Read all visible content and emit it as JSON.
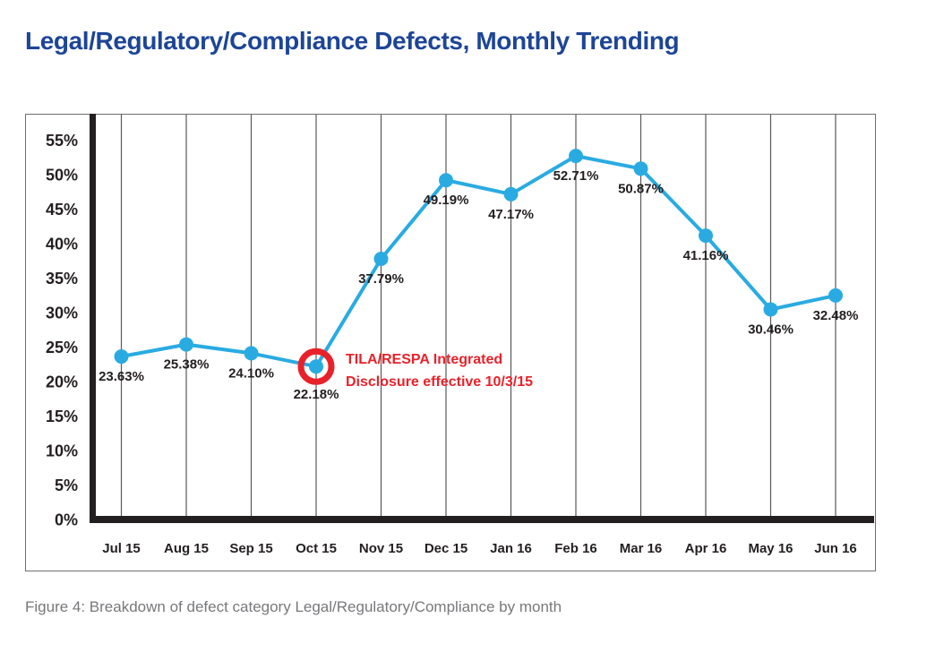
{
  "title": "Legal/Regulatory/Compliance Defects, Monthly Trending",
  "caption": "Figure 4: Breakdown of defect category Legal/Regulatory/Compliance by month",
  "colors": {
    "title": "#1D4597",
    "line": "#29ABE2",
    "point": "#29ABE2",
    "annotation_red": "#E8222A",
    "axis_black": "#231F20",
    "label_black": "#231F20",
    "grid_gray": "#58595B",
    "border_gray": "#6D6E71",
    "caption_gray": "#77787B"
  },
  "chart_data": {
    "type": "line",
    "title": "Legal/Regulatory/Compliance Defects, Monthly Trending",
    "categories": [
      "Jul 15",
      "Aug 15",
      "Sep 15",
      "Oct 15",
      "Nov 15",
      "Dec 15",
      "Jan 16",
      "Feb 16",
      "Mar 16",
      "Apr 16",
      "May 16",
      "Jun 16"
    ],
    "values": [
      23.63,
      25.38,
      24.1,
      22.18,
      37.79,
      49.19,
      47.17,
      52.71,
      50.87,
      41.16,
      30.46,
      32.48
    ],
    "point_labels": [
      "23.63%",
      "25.38%",
      "24.10%",
      "22.18%",
      "37.79%",
      "49.19%",
      "47.17%",
      "52.71%",
      "50.87%",
      "41.16%",
      "30.46%",
      "32.48%"
    ],
    "ytick_labels": [
      "0%",
      "5%",
      "10%",
      "15%",
      "20%",
      "25%",
      "30%",
      "35%",
      "40%",
      "45%",
      "50%",
      "55%"
    ],
    "ytick_values": [
      0,
      5,
      10,
      15,
      20,
      25,
      30,
      35,
      40,
      45,
      50,
      55
    ],
    "ylim": [
      0,
      58.8
    ],
    "xlabel": "",
    "ylabel": "",
    "grid": "vertical-only",
    "legend": "none",
    "annotation": {
      "index": 3,
      "circled_value": "22.18%",
      "line1": "TILA/RESPA Integrated",
      "line2": "Disclosure effective 10/3/15"
    }
  }
}
